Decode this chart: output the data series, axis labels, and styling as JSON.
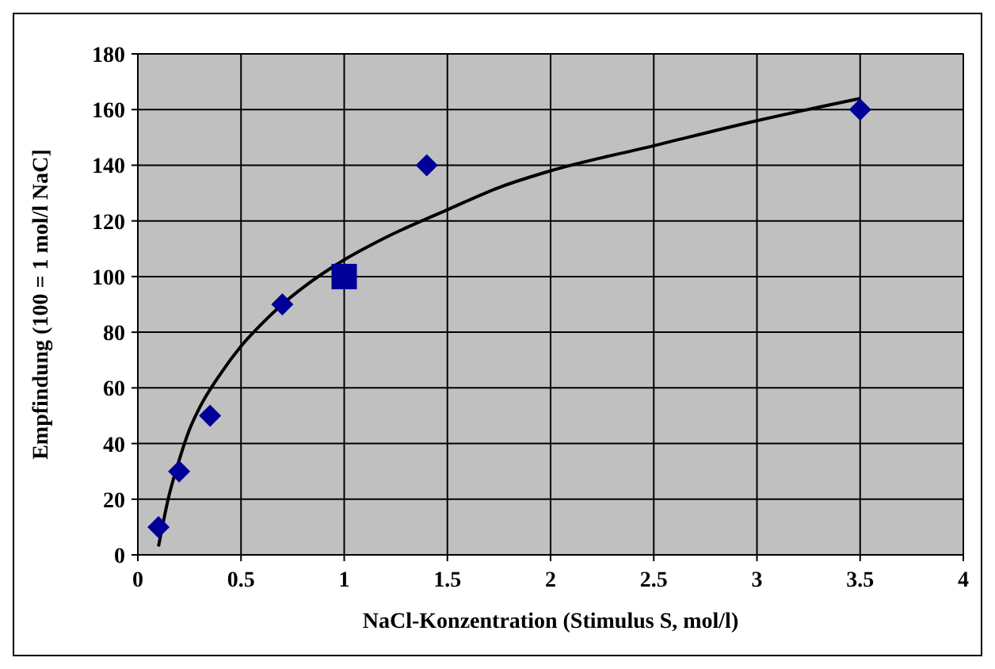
{
  "chart_data": {
    "type": "scatter",
    "xlabel": "NaCl-Konzentration (Stimulus S, mol/l)",
    "ylabel": "Empfindung (100 = 1 mol/l NaC]",
    "xlim": [
      0,
      4
    ],
    "xticks": [
      0,
      0.5,
      1,
      1.5,
      2,
      2.5,
      3,
      3.5,
      4
    ],
    "ylim": [
      0,
      180
    ],
    "yticks": [
      0,
      20,
      40,
      60,
      80,
      100,
      120,
      140,
      160,
      180
    ],
    "grid": true,
    "series": [
      {
        "type": "line",
        "color": "#000000",
        "marker": "none",
        "line_style": "solid",
        "x": [
          0.1,
          0.15,
          0.2,
          0.25,
          0.3,
          0.4,
          0.5,
          0.6,
          0.7,
          0.8,
          1,
          1.2,
          1.5,
          1.75,
          2,
          2.5,
          3,
          3.5
        ],
        "values": [
          3,
          21,
          34,
          45,
          53,
          65,
          75,
          83,
          90,
          96,
          106,
          114,
          124,
          132,
          138,
          147,
          156,
          164
        ]
      },
      {
        "color": "#000099",
        "marker": "diamond",
        "x": [
          0.1,
          0.2,
          0.35,
          0.7,
          1.4,
          3.5
        ],
        "values": [
          10,
          30,
          50,
          90,
          140,
          160
        ]
      },
      {
        "color": "#000099",
        "marker": "square",
        "x": [
          1
        ],
        "values": [
          100
        ]
      }
    ]
  }
}
